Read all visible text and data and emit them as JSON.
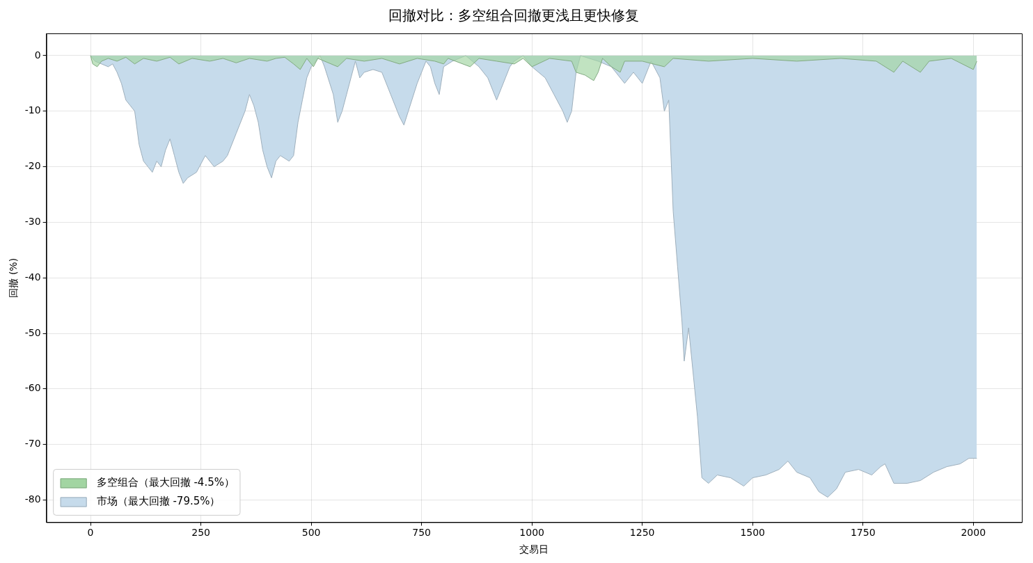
{
  "chart_data": {
    "type": "area",
    "title": "回撤对比：多空组合回撤更浅且更快修复",
    "xlabel": "交易日",
    "ylabel": "回撤 (%)",
    "xlim": [
      -100,
      2110
    ],
    "xticks": [
      0,
      250,
      500,
      750,
      1000,
      1250,
      1500,
      1750,
      2000
    ],
    "ylim": [
      -84,
      4
    ],
    "yticks": [
      0,
      -10,
      -20,
      -30,
      -40,
      -50,
      -60,
      -70,
      -80
    ],
    "grid": true,
    "legend": "bottom left",
    "line_style": "solid",
    "marker": "none",
    "series": [
      {
        "name": "多空组合（最大回撤 -4.5%）",
        "color": "#a2d5a2",
        "x": [
          0,
          5,
          15,
          25,
          40,
          60,
          80,
          100,
          120,
          150,
          180,
          200,
          230,
          270,
          300,
          330,
          360,
          400,
          420,
          440,
          460,
          475,
          490,
          505,
          515,
          560,
          580,
          620,
          660,
          700,
          740,
          780,
          800,
          810,
          860,
          880,
          920,
          960,
          980,
          1000,
          1040,
          1090,
          1100,
          1120,
          1140,
          1150,
          1160,
          1180,
          1200,
          1210,
          1250,
          1300,
          1320,
          1400,
          1500,
          1600,
          1700,
          1780,
          1820,
          1840,
          1880,
          1900,
          1950,
          2000,
          2008
        ],
        "values": [
          0,
          -1.5,
          -2,
          -1,
          -0.5,
          -1,
          -0.3,
          -1.5,
          -0.5,
          -1,
          -0.3,
          -1.5,
          -0.5,
          -1,
          -0.5,
          -1.3,
          -0.5,
          -1,
          -0.5,
          -0.3,
          -1.5,
          -2.5,
          -0.5,
          -2,
          -0.5,
          -2,
          -0.5,
          -1,
          -0.5,
          -1.5,
          -0.5,
          -1,
          -1.5,
          -0.5,
          -2,
          -0.5,
          -1,
          -1.5,
          -0.5,
          -2,
          -0.5,
          -1,
          -3,
          -3.5,
          -4.5,
          -3,
          -0.5,
          -2,
          -3,
          -1,
          -1,
          -2,
          -0.5,
          -1,
          -0.5,
          -1,
          -0.5,
          -1,
          -3,
          -1,
          -3,
          -1,
          -0.5,
          -2.5,
          -1
        ]
      },
      {
        "name": "市场（最大回撤 -79.5%）",
        "color": "#c6dbeb",
        "x": [
          0,
          10,
          40,
          50,
          60,
          70,
          80,
          90,
          100,
          110,
          120,
          130,
          140,
          150,
          160,
          170,
          180,
          190,
          200,
          210,
          220,
          240,
          260,
          280,
          300,
          310,
          330,
          350,
          360,
          370,
          380,
          390,
          400,
          410,
          420,
          430,
          450,
          460,
          470,
          480,
          490,
          500,
          510,
          520,
          530,
          550,
          560,
          570,
          580,
          590,
          600,
          610,
          620,
          640,
          660,
          680,
          700,
          710,
          720,
          740,
          750,
          760,
          770,
          780,
          790,
          800,
          820,
          850,
          880,
          900,
          910,
          920,
          930,
          940,
          950,
          960,
          980,
          1000,
          1030,
          1050,
          1070,
          1080,
          1090,
          1100,
          1110,
          1150,
          1180,
          1210,
          1230,
          1250,
          1270,
          1290,
          1300,
          1310,
          1320,
          1330,
          1340,
          1345,
          1355,
          1365,
          1375,
          1385,
          1400,
          1420,
          1450,
          1480,
          1500,
          1530,
          1560,
          1580,
          1600,
          1630,
          1650,
          1670,
          1690,
          1710,
          1740,
          1770,
          1790,
          1800,
          1820,
          1850,
          1880,
          1910,
          1940,
          1970,
          1990,
          2008
        ],
        "values": [
          0,
          -1,
          -2,
          -1.5,
          -3,
          -5,
          -8,
          -9,
          -10,
          -16,
          -19,
          -20,
          -21,
          -19,
          -20,
          -17,
          -15,
          -18,
          -21,
          -23,
          -22,
          -21,
          -18,
          -20,
          -19,
          -18,
          -14,
          -10,
          -7,
          -9,
          -12,
          -17,
          -20,
          -22,
          -19,
          -18,
          -19,
          -18,
          -12,
          -8,
          -4,
          -2,
          -1,
          0,
          -2,
          -7,
          -12,
          -10,
          -7,
          -4,
          -1,
          -4,
          -3,
          -2.5,
          -3,
          -7,
          -11,
          -12.5,
          -10,
          -5,
          -3,
          -1,
          -2,
          -5,
          -7,
          -2,
          -1,
          0,
          -2,
          -4,
          -6,
          -8,
          -6,
          -4,
          -2,
          -1,
          0,
          -2,
          -4,
          -7,
          -10,
          -12,
          -10,
          -3,
          0,
          -1,
          -2,
          -5,
          -3,
          -5,
          -1,
          -4,
          -10,
          -8,
          -28,
          -38,
          -48,
          -55,
          -49,
          -57,
          -65,
          -76,
          -77,
          -75.5,
          -76,
          -77.5,
          -76,
          -75.5,
          -74.5,
          -73,
          -75,
          -76,
          -78.5,
          -79.5,
          -78,
          -75,
          -74.5,
          -75.5,
          -74,
          -73.5,
          -77,
          -77,
          -76.5,
          -75,
          -74,
          -73.5,
          -72.5,
          -72.5
        ]
      }
    ]
  }
}
